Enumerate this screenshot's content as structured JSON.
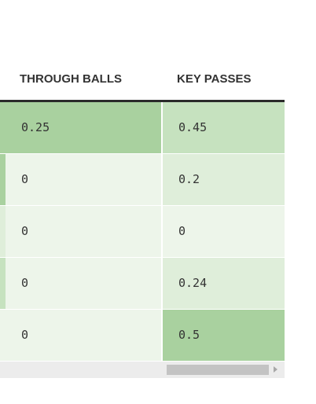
{
  "table": {
    "columns": [
      "THROUGH BALLS",
      "KEY PASSES"
    ],
    "rows": [
      {
        "through_balls": "0.25",
        "key_passes": "0.45",
        "colors": {
          "stub": "#a9d19f",
          "through_balls": "#a9d19f",
          "key_passes": "#c6e2bf"
        }
      },
      {
        "through_balls": "0",
        "key_passes": "0.2",
        "colors": {
          "stub": "#a9d19f",
          "through_balls": "#edf5ea",
          "key_passes": "#dfeeda"
        }
      },
      {
        "through_balls": "0",
        "key_passes": "0",
        "colors": {
          "stub": "#dfeeda",
          "through_balls": "#edf5ea",
          "key_passes": "#edf5ea"
        }
      },
      {
        "through_balls": "0",
        "key_passes": "0.24",
        "colors": {
          "stub": "#c6e2bf",
          "through_balls": "#edf5ea",
          "key_passes": "#dfeeda"
        }
      },
      {
        "through_balls": "0",
        "key_passes": "0.5",
        "colors": {
          "stub": "#edf5ea",
          "through_balls": "#edf5ea",
          "key_passes": "#a9d19f"
        }
      }
    ]
  },
  "scrollbar": {
    "arrow_icon": "chevron-right-icon",
    "track_color": "#ececec",
    "thumb_color": "#c3c3c3"
  }
}
